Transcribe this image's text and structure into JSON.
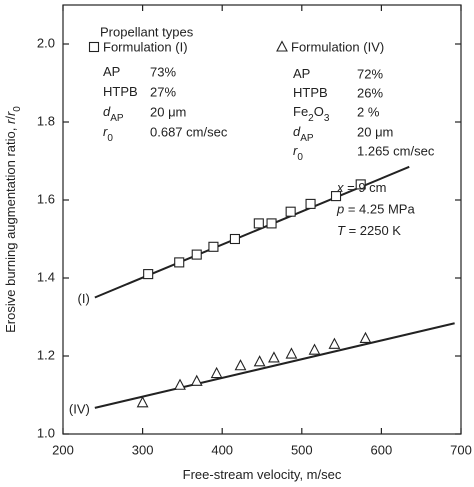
{
  "chart_data": {
    "type": "scatter",
    "xlabel": [
      {
        "text": "Free-stream velocity, m/sec"
      }
    ],
    "ylabel": [
      {
        "text": "Erosive burning augmentation ratio, "
      },
      {
        "text": "r",
        "italic": true
      },
      {
        "text": "/"
      },
      {
        "text": "r",
        "italic": true
      },
      {
        "text": "0",
        "sub": true
      }
    ],
    "xlim": [
      200,
      700
    ],
    "xticks": [
      200,
      300,
      400,
      500,
      600,
      700
    ],
    "ylim": [
      1.0,
      2.1
    ],
    "yticks": [
      {
        "value": 1.0,
        "label": "1.0"
      },
      1.2,
      1.4,
      1.6,
      1.8,
      {
        "value": 2.0,
        "label": "2.0"
      }
    ],
    "legend_title": "Propellant types",
    "series": [
      {
        "name": "Formulation (I)",
        "marker": "square",
        "color": "#222222",
        "x": [
          307,
          346,
          368,
          389,
          416,
          446,
          462,
          486,
          511,
          543,
          574
        ],
        "values": [
          1.41,
          1.44,
          1.46,
          1.48,
          1.5,
          1.54,
          1.54,
          1.57,
          1.59,
          1.61,
          1.64
        ],
        "fit": {
          "label": "(I)",
          "x": [
            240,
            635
          ],
          "values": [
            1.35,
            1.685
          ]
        },
        "composition": [
          {
            "name": [
              {
                "text": "AP"
              }
            ],
            "value": "73%"
          },
          {
            "name": [
              {
                "text": "HTPB"
              }
            ],
            "value": "27%"
          },
          {
            "name": [
              {
                "text": "d",
                "italic": true
              },
              {
                "text": "AP",
                "sub": true
              }
            ],
            "value": "20 μm"
          },
          {
            "name": [
              {
                "text": "r",
                "italic": true
              },
              {
                "text": "0",
                "sub": true
              }
            ],
            "value": "0.687 cm/sec"
          }
        ]
      },
      {
        "name": "Formulation (IV)",
        "marker": "triangle",
        "color": "#222222",
        "x": [
          300,
          347,
          368,
          393,
          423,
          447,
          465,
          487,
          516,
          541,
          580
        ],
        "values": [
          1.08,
          1.125,
          1.135,
          1.155,
          1.175,
          1.185,
          1.195,
          1.205,
          1.215,
          1.23,
          1.245
        ],
        "fit": {
          "label": "(IV)",
          "x": [
            240,
            692
          ],
          "values": [
            1.067,
            1.284
          ]
        },
        "composition": [
          {
            "name": [
              {
                "text": "AP"
              }
            ],
            "value": "72%"
          },
          {
            "name": [
              {
                "text": "HTPB"
              }
            ],
            "value": "26%"
          },
          {
            "name": [
              {
                "text": "Fe"
              },
              {
                "text": "2",
                "sub": true
              },
              {
                "text": "O"
              },
              {
                "text": "3",
                "sub": true
              }
            ],
            "value": "2 %"
          },
          {
            "name": [
              {
                "text": "d",
                "italic": true
              },
              {
                "text": "AP",
                "sub": true
              }
            ],
            "value": "20 μm"
          },
          {
            "name": [
              {
                "text": "r",
                "italic": true
              },
              {
                "text": "0",
                "sub": true
              }
            ],
            "value": "1.265 cm/sec"
          }
        ]
      }
    ],
    "annotations": [
      [
        {
          "text": "x",
          "italic": true
        },
        {
          "text": " = 9 cm"
        }
      ],
      [
        {
          "text": "p",
          "italic": true
        },
        {
          "text": " = 4.25 MPa"
        }
      ],
      [
        {
          "text": "T",
          "italic": true
        },
        {
          "text": " = 2250 K"
        }
      ]
    ]
  }
}
